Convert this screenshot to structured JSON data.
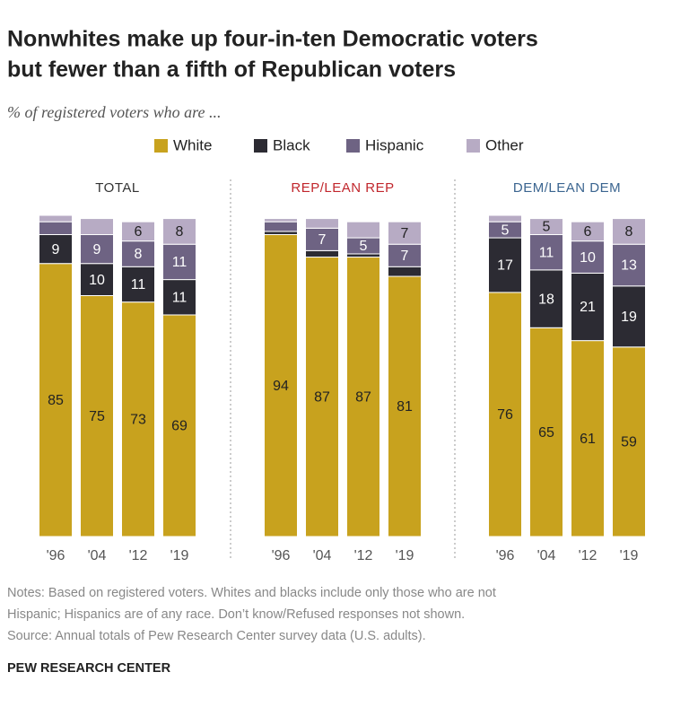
{
  "title": [
    "Nonwhites make up four-in-ten Democratic voters",
    "but fewer than a fifth of Republican voters"
  ],
  "subtitle": "% of registered voters who are ...",
  "notes": [
    "Notes: Based on registered voters. Whites and blacks include only those who are not",
    "Hispanic; Hispanics are of any race. Don’t know/Refused responses not shown.",
    "Source: Annual totals of Pew Research Center survey data (U.S. adults)."
  ],
  "footer": "PEW RESEARCH CENTER",
  "chart_data": {
    "type": "bar",
    "stacked": true,
    "ylim": [
      0,
      100
    ],
    "categories": [
      "'96",
      "'04",
      "'12",
      "'19"
    ],
    "series": [
      {
        "name": "White",
        "color": "#c8a21e"
      },
      {
        "name": "Black",
        "color": "#2c2b33"
      },
      {
        "name": "Hispanic",
        "color": "#6e6383"
      },
      {
        "name": "Other",
        "color": "#b7abc4"
      }
    ],
    "panels": [
      {
        "title": "TOTAL",
        "title_color": "#333333",
        "series": [
          {
            "values": [
              85,
              75,
              73,
              69
            ],
            "value_labels": [
              "85",
              "75",
              "73",
              "69"
            ]
          },
          {
            "values": [
              9,
              10,
              11,
              11
            ],
            "value_labels": [
              "9",
              "10",
              "11",
              "11"
            ]
          },
          {
            "values": [
              4,
              9,
              8,
              11
            ],
            "value_labels": [
              null,
              "9",
              "8",
              "11"
            ]
          },
          {
            "values": [
              2,
              5,
              6,
              8
            ],
            "value_labels": [
              null,
              null,
              "6",
              "8"
            ]
          }
        ]
      },
      {
        "title": "REP/LEAN REP",
        "title_color": "#c1272d",
        "series": [
          {
            "values": [
              94,
              87,
              87,
              81
            ],
            "value_labels": [
              "94",
              "87",
              "87",
              "81"
            ]
          },
          {
            "values": [
              1,
              2,
              1,
              3
            ],
            "value_labels": [
              null,
              null,
              null,
              null
            ]
          },
          {
            "values": [
              3,
              7,
              5,
              7
            ],
            "value_labels": [
              null,
              "7",
              "5",
              "7"
            ]
          },
          {
            "values": [
              1,
              3,
              5,
              7
            ],
            "value_labels": [
              null,
              null,
              null,
              "7"
            ]
          }
        ]
      },
      {
        "title": "DEM/LEAN DEM",
        "title_color": "#3b6590",
        "series": [
          {
            "values": [
              76,
              65,
              61,
              59
            ],
            "value_labels": [
              "76",
              "65",
              "61",
              "59"
            ]
          },
          {
            "values": [
              17,
              18,
              21,
              19
            ],
            "value_labels": [
              "17",
              "18",
              "21",
              "19"
            ]
          },
          {
            "values": [
              5,
              11,
              10,
              13
            ],
            "value_labels": [
              "5",
              "11",
              "10",
              "13"
            ]
          },
          {
            "values": [
              2,
              5,
              6,
              8
            ],
            "value_labels": [
              null,
              "5",
              "6",
              "8"
            ]
          }
        ]
      }
    ]
  }
}
